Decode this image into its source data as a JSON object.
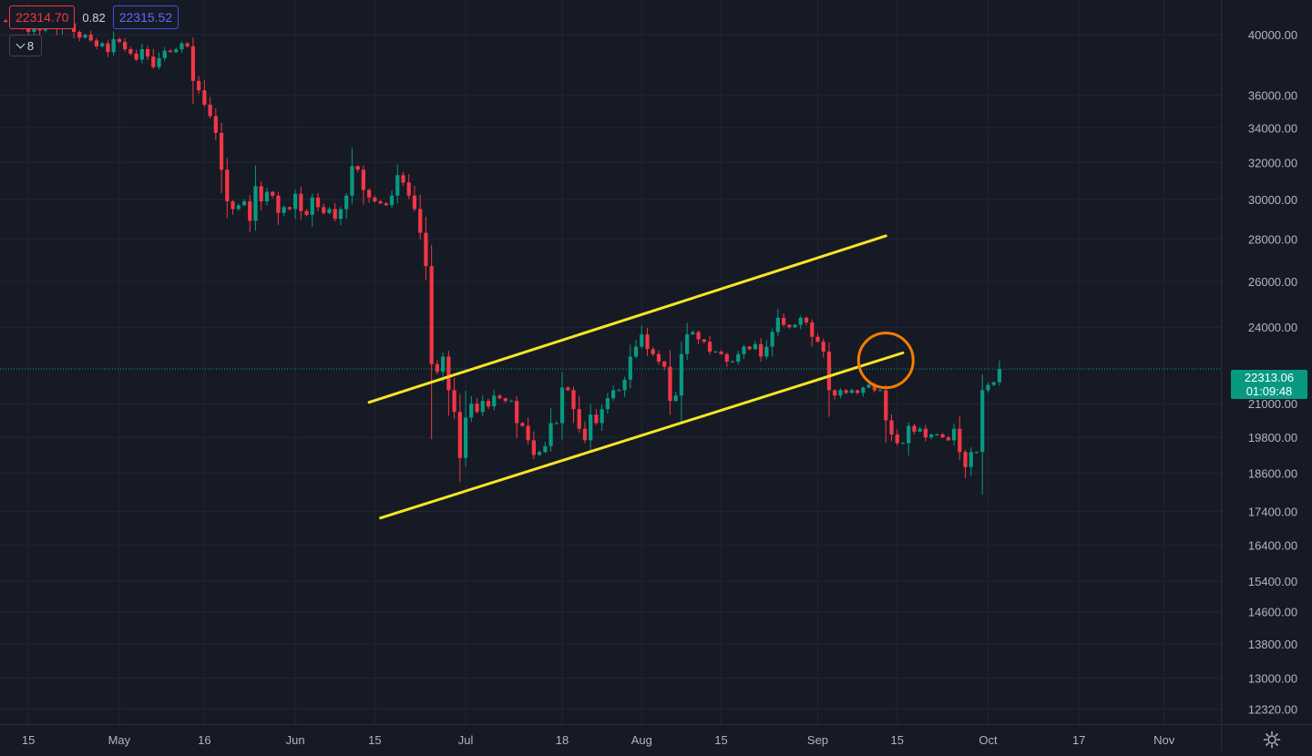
{
  "header": {
    "bid_price": "22314.70",
    "spread": "0.82",
    "ask_price": "22315.52",
    "collapse_count": "8"
  },
  "last_price": {
    "value": "22313.06",
    "countdown": "01:09:48",
    "color": "#089981"
  },
  "colors": {
    "background": "#161a25",
    "up": "#089981",
    "down": "#f23645",
    "trendline": "#f5e626",
    "highlight_circle": "#f57c00",
    "grid": "#232632",
    "axis_text": "#b2b5be"
  },
  "settings_icon": "gear-icon",
  "chart_data": {
    "type": "candlestick",
    "scale": "log",
    "ylim": [
      12000,
      42500
    ],
    "xrange": [
      "2022-04-10",
      "2022-11-11"
    ],
    "y_ticks": [
      "40000.00",
      "36000.00",
      "34000.00",
      "32000.00",
      "30000.00",
      "28000.00",
      "26000.00",
      "24000.00",
      "21000.00",
      "19800.00",
      "18600.00",
      "17400.00",
      "16400.00",
      "15400.00",
      "14600.00",
      "13800.00",
      "13000.00",
      "12320.00"
    ],
    "x_ticks": [
      {
        "date": "2022-04-15",
        "label": "15"
      },
      {
        "date": "2022-05-01",
        "label": "May"
      },
      {
        "date": "2022-05-16",
        "label": "16"
      },
      {
        "date": "2022-06-01",
        "label": "Jun"
      },
      {
        "date": "2022-06-15",
        "label": "15"
      },
      {
        "date": "2022-07-01",
        "label": "Jul"
      },
      {
        "date": "2022-07-18",
        "label": "18"
      },
      {
        "date": "2022-08-01",
        "label": "Aug"
      },
      {
        "date": "2022-08-15",
        "label": "15"
      },
      {
        "date": "2022-09-01",
        "label": "Sep"
      },
      {
        "date": "2022-09-15",
        "label": "15"
      },
      {
        "date": "2022-10-01",
        "label": "Oct"
      },
      {
        "date": "2022-10-17",
        "label": "17"
      },
      {
        "date": "2022-11-01",
        "label": "Nov"
      }
    ],
    "start_date": "2022-04-10",
    "closes": [
      41000,
      40900,
      41200,
      41100,
      40600,
      40200,
      40800,
      40300,
      40700,
      41000,
      40400,
      41000,
      40800,
      40200,
      39800,
      40000,
      39600,
      39200,
      39400,
      38800,
      39700,
      39500,
      39000,
      38700,
      38300,
      39000,
      38500,
      37800,
      38400,
      38900,
      38800,
      39000,
      39400,
      39200,
      36900,
      36300,
      35400,
      34700,
      33700,
      31600,
      29900,
      29500,
      29700,
      29900,
      28900,
      30700,
      29900,
      30400,
      30200,
      29300,
      29600,
      29500,
      30300,
      29400,
      29200,
      30100,
      29600,
      29300,
      29500,
      29000,
      29500,
      30200,
      31800,
      31600,
      30500,
      30100,
      29900,
      29800,
      29700,
      30200,
      31300,
      30900,
      30200,
      29500,
      28300,
      26700,
      22500,
      22200,
      22800,
      21500,
      20700,
      19100,
      20500,
      21000,
      20700,
      21100,
      20900,
      21300,
      21200,
      21100,
      21100,
      20300,
      20200,
      19700,
      19200,
      19300,
      19500,
      20300,
      20300,
      21600,
      21500,
      20800,
      20100,
      19700,
      20600,
      20300,
      20800,
      21200,
      21500,
      21500,
      21900,
      22800,
      23200,
      23700,
      23100,
      22900,
      22600,
      22400,
      21100,
      21300,
      22900,
      23700,
      23800,
      23500,
      23400,
      23000,
      23000,
      22900,
      22600,
      22600,
      22900,
      23200,
      23100,
      23300,
      22800,
      23200,
      23800,
      24400,
      24100,
      24000,
      24100,
      24400,
      24200,
      23600,
      23400,
      23000,
      21500,
      21300,
      21500,
      21400,
      21500,
      21400,
      21600,
      21700,
      21500,
      21500,
      20400,
      19900,
      19600,
      19600,
      20200,
      20000,
      20100,
      19800,
      19900,
      19900,
      19800,
      19700,
      20100,
      19300,
      18800,
      19300,
      19300,
      21500,
      21700,
      21800,
      22313
    ],
    "trendlines": [
      {
        "name": "channel-top",
        "points": [
          [
            "2022-06-14",
            21050
          ],
          [
            "2022-09-13",
            28150
          ]
        ]
      },
      {
        "name": "channel-bottom",
        "points": [
          [
            "2022-06-16",
            17200
          ],
          [
            "2022-09-16",
            22950
          ]
        ]
      }
    ],
    "marker": {
      "type": "circle",
      "date": "2022-09-13",
      "value": 22650
    }
  }
}
